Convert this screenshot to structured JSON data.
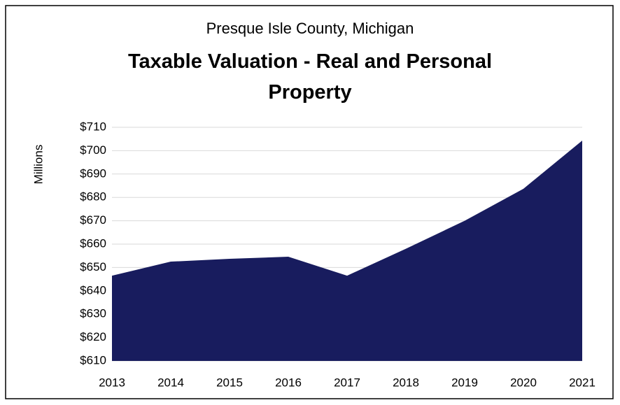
{
  "chart_data": {
    "type": "area",
    "subtitle": "Presque Isle County, Michigan",
    "title": "Taxable Valuation - Real and Personal Property",
    "y_axis_label": "Millions",
    "categories": [
      "2013",
      "2014",
      "2015",
      "2016",
      "2017",
      "2018",
      "2019",
      "2020",
      "2021"
    ],
    "series": [
      {
        "name": "Taxable Valuation",
        "color": "#181c5e",
        "values": [
          646.5,
          652.5,
          653.7,
          654.6,
          646.5,
          658,
          670,
          683.7,
          704.3
        ]
      }
    ],
    "ylim": [
      610,
      710
    ],
    "yticks": [
      {
        "value": 610,
        "label": "$610"
      },
      {
        "value": 620,
        "label": "$620"
      },
      {
        "value": 630,
        "label": "$630"
      },
      {
        "value": 640,
        "label": "$640"
      },
      {
        "value": 650,
        "label": "$650"
      },
      {
        "value": 660,
        "label": "$660"
      },
      {
        "value": 670,
        "label": "$670"
      },
      {
        "value": 680,
        "label": "$680"
      },
      {
        "value": 690,
        "label": "$690"
      },
      {
        "value": 700,
        "label": "$700"
      },
      {
        "value": 710,
        "label": "$710"
      }
    ],
    "grid": true
  }
}
